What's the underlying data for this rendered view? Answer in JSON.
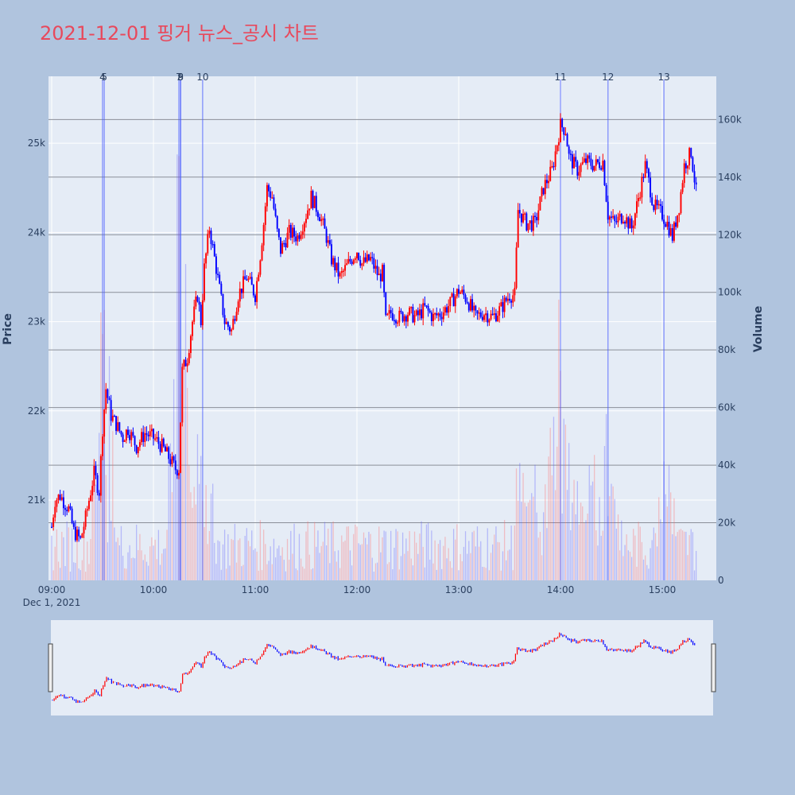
{
  "chart_data": {
    "type": "candlestick",
    "title": "2021-12-01 핑거 뉴스_공시 차트",
    "y_left_label": "Price",
    "y_right_label": "Volume",
    "y_left_range": [
      20100,
      25750
    ],
    "y_right_range": [
      0,
      175000
    ],
    "x_range": [
      "09:00",
      "15:30"
    ],
    "x_ticks": [
      "09:00",
      "10:00",
      "11:00",
      "12:00",
      "13:00",
      "14:00",
      "15:00"
    ],
    "x_date_label": "Dec 1, 2021",
    "y_left_ticks": [
      {
        "v": 21000,
        "label": "21k"
      },
      {
        "v": 22000,
        "label": "22k"
      },
      {
        "v": 23000,
        "label": "23k"
      },
      {
        "v": 24000,
        "label": "24k"
      },
      {
        "v": 25000,
        "label": "25k"
      }
    ],
    "y_right_ticks": [
      {
        "v": 0,
        "label": "0"
      },
      {
        "v": 20000,
        "label": "20k"
      },
      {
        "v": 40000,
        "label": "40k"
      },
      {
        "v": 60000,
        "label": "60k"
      },
      {
        "v": 80000,
        "label": "80k"
      },
      {
        "v": 100000,
        "label": "100k"
      },
      {
        "v": 120000,
        "label": "120k"
      },
      {
        "v": 140000,
        "label": "140k"
      },
      {
        "v": 160000,
        "label": "160k"
      }
    ],
    "up_color": "#ff0000",
    "down_color": "#0000ff",
    "news_markers": [
      {
        "label": "4",
        "time": "09:30"
      },
      {
        "label": "5",
        "time": "09:31"
      },
      {
        "label": "7",
        "time": "10:15"
      },
      {
        "label": "8",
        "time": "10:16"
      },
      {
        "label": "9",
        "time": "10:16"
      },
      {
        "label": "10",
        "time": "10:29"
      },
      {
        "label": "11",
        "time": "14:00"
      },
      {
        "label": "12",
        "time": "14:28"
      },
      {
        "label": "13",
        "time": "15:01"
      }
    ],
    "price_anchors": [
      [
        "09:00",
        20700
      ],
      [
        "09:02",
        21000
      ],
      [
        "09:05",
        21050
      ],
      [
        "09:10",
        20900
      ],
      [
        "09:13",
        20650
      ],
      [
        "09:17",
        20550
      ],
      [
        "09:20",
        20800
      ],
      [
        "09:25",
        21300
      ],
      [
        "09:28",
        21100
      ],
      [
        "09:30",
        21800
      ],
      [
        "09:32",
        22250
      ],
      [
        "09:35",
        21950
      ],
      [
        "09:38",
        21850
      ],
      [
        "09:42",
        21700
      ],
      [
        "09:45",
        21800
      ],
      [
        "09:50",
        21600
      ],
      [
        "09:55",
        21750
      ],
      [
        "10:00",
        21700
      ],
      [
        "10:05",
        21600
      ],
      [
        "10:10",
        21450
      ],
      [
        "10:13",
        21350
      ],
      [
        "10:15",
        21350
      ],
      [
        "10:17",
        22450
      ],
      [
        "10:20",
        22600
      ],
      [
        "10:23",
        23000
      ],
      [
        "10:26",
        23300
      ],
      [
        "10:28",
        23000
      ],
      [
        "10:30",
        23600
      ],
      [
        "10:33",
        24050
      ],
      [
        "10:37",
        23600
      ],
      [
        "10:42",
        23000
      ],
      [
        "10:46",
        22900
      ],
      [
        "10:50",
        23300
      ],
      [
        "10:55",
        23500
      ],
      [
        "11:00",
        23300
      ],
      [
        "11:03",
        23750
      ],
      [
        "11:05",
        24100
      ],
      [
        "11:07",
        24500
      ],
      [
        "11:10",
        24400
      ],
      [
        "11:13",
        24000
      ],
      [
        "11:15",
        23800
      ],
      [
        "11:20",
        24000
      ],
      [
        "11:25",
        23950
      ],
      [
        "11:30",
        24200
      ],
      [
        "11:33",
        24400
      ],
      [
        "11:38",
        24200
      ],
      [
        "11:42",
        23950
      ],
      [
        "11:45",
        23700
      ],
      [
        "11:50",
        23500
      ],
      [
        "11:55",
        23650
      ],
      [
        "12:00",
        23800
      ],
      [
        "12:03",
        23650
      ],
      [
        "12:08",
        23700
      ],
      [
        "12:13",
        23500
      ],
      [
        "12:15",
        23550
      ],
      [
        "12:17",
        23000
      ],
      [
        "12:20",
        23100
      ],
      [
        "12:25",
        23050
      ],
      [
        "12:30",
        23100
      ],
      [
        "12:35",
        23050
      ],
      [
        "12:40",
        23150
      ],
      [
        "12:45",
        23050
      ],
      [
        "12:50",
        23100
      ],
      [
        "12:55",
        23200
      ],
      [
        "13:00",
        23350
      ],
      [
        "13:05",
        23250
      ],
      [
        "13:10",
        23050
      ],
      [
        "13:15",
        23100
      ],
      [
        "13:20",
        23050
      ],
      [
        "13:25",
        23150
      ],
      [
        "13:30",
        23300
      ],
      [
        "13:33",
        23300
      ],
      [
        "13:35",
        24250
      ],
      [
        "13:40",
        24100
      ],
      [
        "13:45",
        24100
      ],
      [
        "13:50",
        24500
      ],
      [
        "13:55",
        24700
      ],
      [
        "14:00",
        25200
      ],
      [
        "14:03",
        25150
      ],
      [
        "14:05",
        24850
      ],
      [
        "14:10",
        24700
      ],
      [
        "14:15",
        24800
      ],
      [
        "14:20",
        24750
      ],
      [
        "14:25",
        24800
      ],
      [
        "14:28",
        24200
      ],
      [
        "14:32",
        24100
      ],
      [
        "14:37",
        24200
      ],
      [
        "14:42",
        24050
      ],
      [
        "14:45",
        24300
      ],
      [
        "14:50",
        24750
      ],
      [
        "14:55",
        24300
      ],
      [
        "15:00",
        24200
      ],
      [
        "15:03",
        24100
      ],
      [
        "15:06",
        23950
      ],
      [
        "15:10",
        24300
      ],
      [
        "15:13",
        24750
      ],
      [
        "15:17",
        24900
      ],
      [
        "15:20",
        24450
      ]
    ]
  }
}
